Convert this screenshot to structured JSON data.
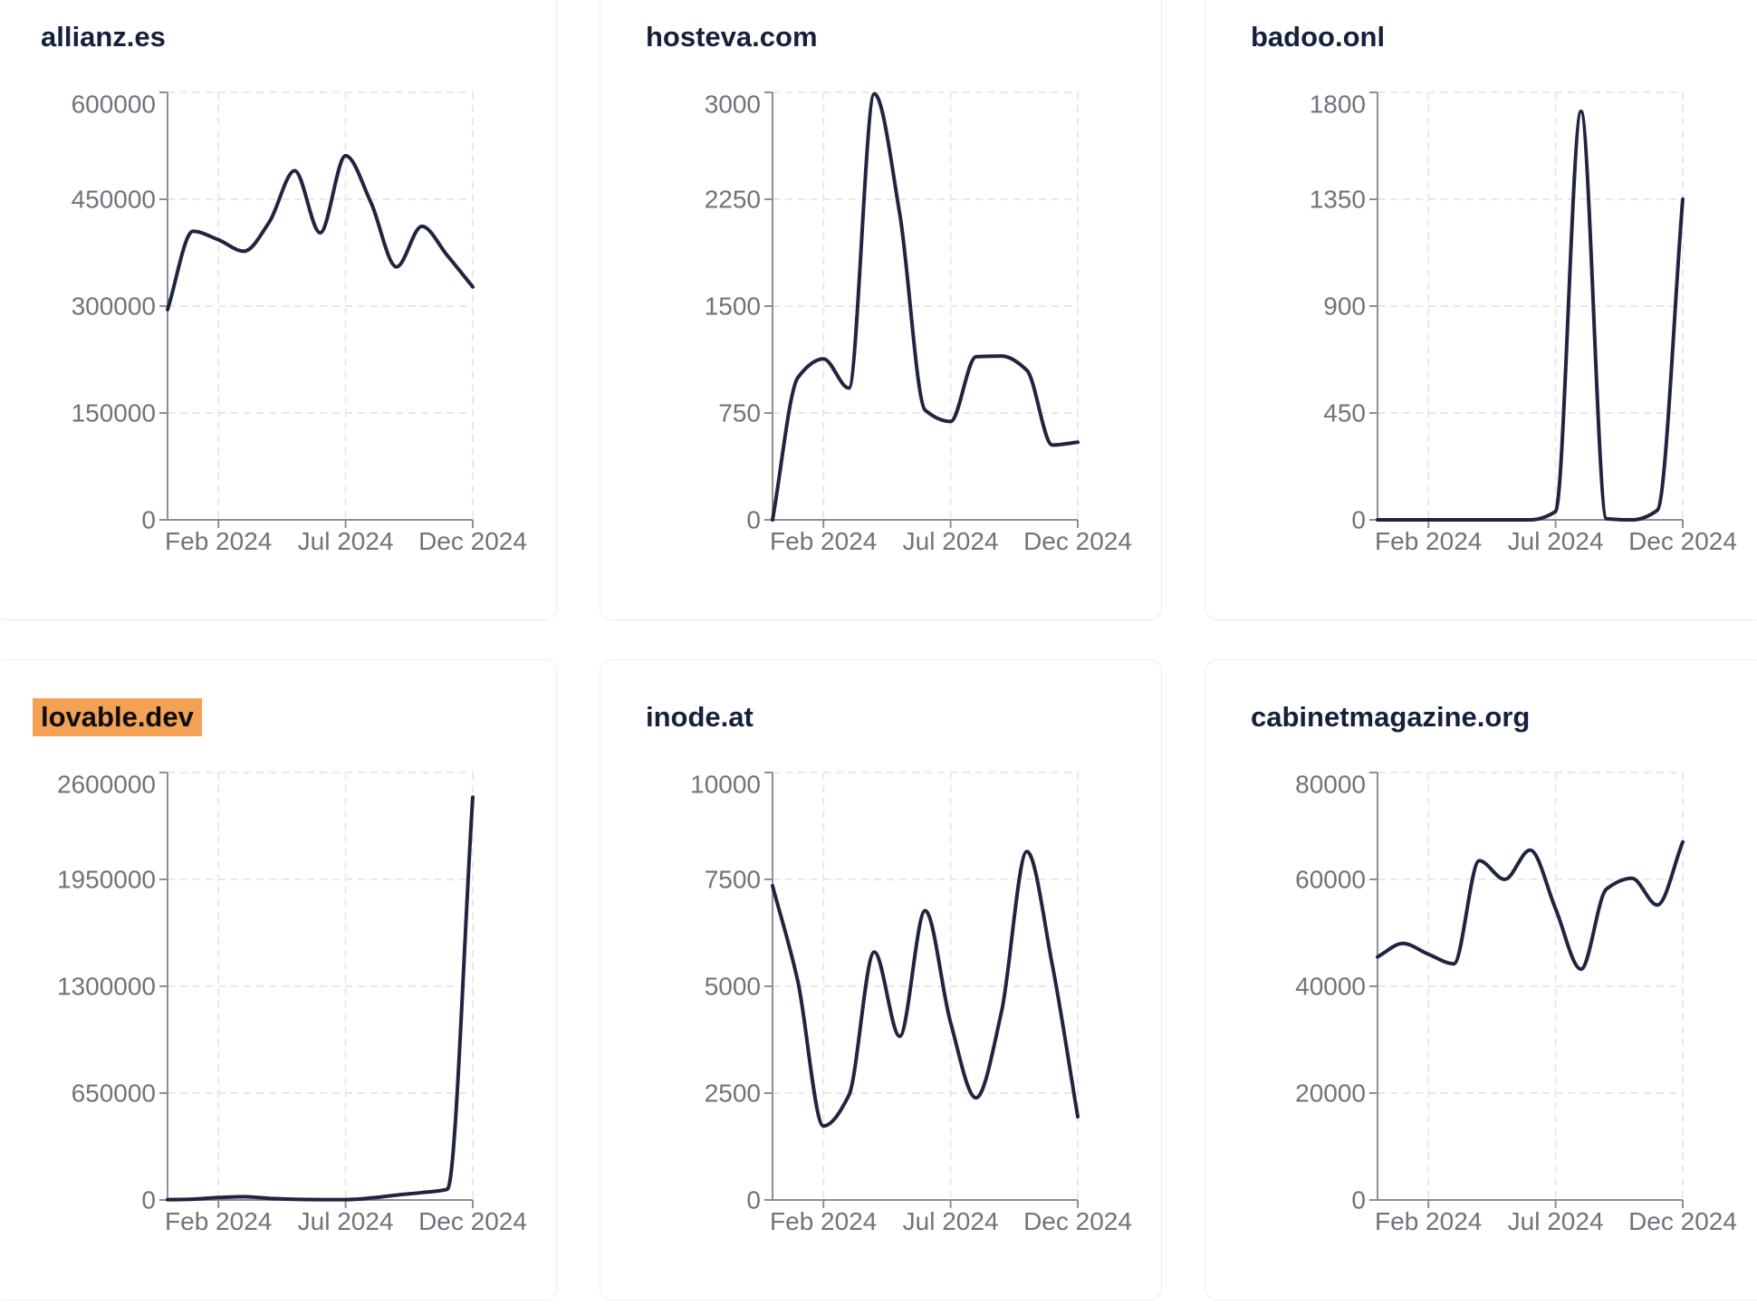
{
  "page": {
    "background": "#ffffff"
  },
  "theme": {
    "line_color": "#1f2540",
    "title_color": "#15203c",
    "label_color": "#6f737a",
    "axis_color": "#8b8f96",
    "grid_color": "#e7e8ec",
    "card_border": "#e9ebf1",
    "card_bg": "#ffffff",
    "highlight_bg": "#f2a155",
    "highlight_text": "#0d0d0d"
  },
  "chart_data": [
    {
      "type": "line",
      "title": "allianz.es",
      "highlighted": false,
      "x": [
        "Dec 2023",
        "Jan 2024",
        "Feb 2024",
        "Mar 2024",
        "Apr 2024",
        "May 2024",
        "Jun 2024",
        "Jul 2024",
        "Aug 2024",
        "Sep 2024",
        "Oct 2024",
        "Nov 2024",
        "Dec 2024"
      ],
      "values": [
        295000,
        405000,
        393000,
        377000,
        418000,
        490000,
        403000,
        511000,
        445000,
        355000,
        412000,
        371000,
        327000
      ],
      "y_ticks": [
        0,
        150000,
        300000,
        450000,
        600000
      ],
      "ylim": [
        0,
        600000
      ],
      "x_tick_labels": [
        "Feb 2024",
        "Jul 2024",
        "Dec 2024"
      ],
      "x_tick_indices": [
        2,
        7,
        12
      ],
      "grid": "dashed",
      "legend": false
    },
    {
      "type": "line",
      "title": "hosteva.com",
      "highlighted": false,
      "x": [
        "Dec 2023",
        "Jan 2024",
        "Feb 2024",
        "Mar 2024",
        "Apr 2024",
        "May 2024",
        "Jun 2024",
        "Jul 2024",
        "Aug 2024",
        "Sep 2024",
        "Oct 2024",
        "Nov 2024",
        "Dec 2024"
      ],
      "values": [
        0,
        1000,
        1130,
        925,
        2990,
        2150,
        770,
        690,
        1145,
        1150,
        1050,
        525,
        545
      ],
      "y_ticks": [
        0,
        750,
        1500,
        2250,
        3000
      ],
      "ylim": [
        0,
        3000
      ],
      "x_tick_labels": [
        "Feb 2024",
        "Jul 2024",
        "Dec 2024"
      ],
      "x_tick_indices": [
        2,
        7,
        12
      ],
      "grid": "dashed",
      "legend": false
    },
    {
      "type": "line",
      "title": "badoo.onl",
      "highlighted": false,
      "x": [
        "Dec 2023",
        "Jan 2024",
        "Feb 2024",
        "Mar 2024",
        "Apr 2024",
        "May 2024",
        "Jun 2024",
        "Jul 2024",
        "Aug 2024",
        "Sep 2024",
        "Oct 2024",
        "Nov 2024",
        "Dec 2024"
      ],
      "values": [
        0,
        0,
        0,
        0,
        0,
        0,
        0,
        35,
        1720,
        5,
        0,
        40,
        1350
      ],
      "y_ticks": [
        0,
        450,
        900,
        1350,
        1800
      ],
      "ylim": [
        0,
        1800
      ],
      "x_tick_labels": [
        "Feb 2024",
        "Jul 2024",
        "Dec 2024"
      ],
      "x_tick_indices": [
        2,
        7,
        12
      ],
      "grid": "dashed",
      "legend": false
    },
    {
      "type": "line",
      "title": "lovable.dev",
      "highlighted": true,
      "x": [
        "Dec 2023",
        "Jan 2024",
        "Feb 2024",
        "Mar 2024",
        "Apr 2024",
        "May 2024",
        "Jun 2024",
        "Jul 2024",
        "Aug 2024",
        "Sep 2024",
        "Oct 2024",
        "Nov 2024",
        "Dec 2024"
      ],
      "values": [
        2000,
        5000,
        15000,
        20000,
        10000,
        4000,
        2000,
        2000,
        12000,
        30000,
        45000,
        65000,
        2450000
      ],
      "y_ticks": [
        0,
        650000,
        1300000,
        1950000,
        2600000
      ],
      "ylim": [
        0,
        2600000
      ],
      "x_tick_labels": [
        "Feb 2024",
        "Jul 2024",
        "Dec 2024"
      ],
      "x_tick_indices": [
        2,
        7,
        12
      ],
      "grid": "dashed",
      "legend": false
    },
    {
      "type": "line",
      "title": "inode.at",
      "highlighted": false,
      "x": [
        "Dec 2023",
        "Jan 2024",
        "Feb 2024",
        "Mar 2024",
        "Apr 2024",
        "May 2024",
        "Jun 2024",
        "Jul 2024",
        "Aug 2024",
        "Sep 2024",
        "Oct 2024",
        "Nov 2024",
        "Dec 2024"
      ],
      "values": [
        7350,
        5100,
        1730,
        2450,
        5800,
        3830,
        6770,
        4150,
        2390,
        4400,
        8150,
        5500,
        1950
      ],
      "y_ticks": [
        0,
        2500,
        5000,
        7500,
        10000
      ],
      "ylim": [
        0,
        10000
      ],
      "x_tick_labels": [
        "Feb 2024",
        "Jul 2024",
        "Dec 2024"
      ],
      "x_tick_indices": [
        2,
        7,
        12
      ],
      "grid": "dashed",
      "legend": false
    },
    {
      "type": "line",
      "title": "cabinetmagazine.org",
      "highlighted": false,
      "x": [
        "Dec 2023",
        "Jan 2024",
        "Feb 2024",
        "Mar 2024",
        "Apr 2024",
        "May 2024",
        "Jun 2024",
        "Jul 2024",
        "Aug 2024",
        "Sep 2024",
        "Oct 2024",
        "Nov 2024",
        "Dec 2024"
      ],
      "values": [
        45500,
        48000,
        46000,
        44200,
        63500,
        60000,
        65500,
        54500,
        43200,
        58200,
        60200,
        55200,
        67000
      ],
      "y_ticks": [
        0,
        20000,
        40000,
        60000,
        80000
      ],
      "ylim": [
        0,
        80000
      ],
      "x_tick_labels": [
        "Feb 2024",
        "Jul 2024",
        "Dec 2024"
      ],
      "x_tick_indices": [
        2,
        7,
        12
      ],
      "grid": "dashed",
      "legend": false
    }
  ]
}
